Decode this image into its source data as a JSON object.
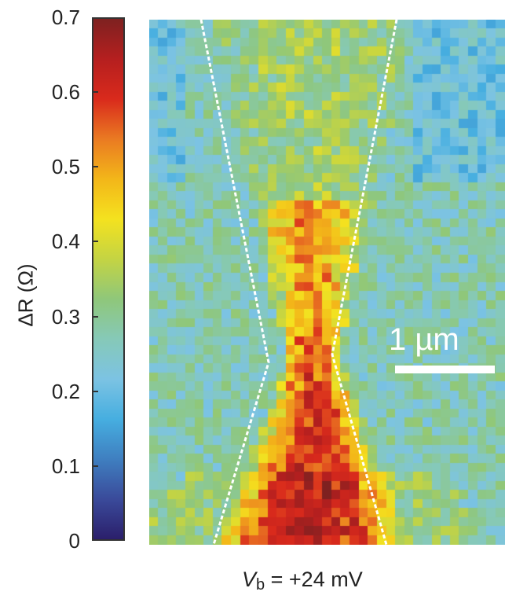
{
  "chart_data": {
    "type": "heatmap",
    "title": "",
    "caption": {
      "symbol": "V",
      "subscript": "b",
      "text": " = +24 mV"
    },
    "colorbar": {
      "label": "ΔR (Ω)",
      "min": 0,
      "max": 0.7,
      "ticks": [
        "0",
        "0.1",
        "0.2",
        "0.3",
        "0.4",
        "0.5",
        "0.6",
        "0.7"
      ],
      "colormap": "jet-like",
      "stops": [
        "#2b1f6b",
        "#3a4a9a",
        "#3f7fc0",
        "#46aee0",
        "#7cc3e3",
        "#86c9b8",
        "#8fc77a",
        "#c4d443",
        "#f4e21f",
        "#f3b619",
        "#ea7a22",
        "#d92a1c",
        "#b51f1f",
        "#7e2120"
      ]
    },
    "grid": {
      "columns": 39,
      "rows": 58,
      "background_level": 0.27,
      "channel_peak_level": 0.58
    },
    "annotations": {
      "scale_bar": "1 µm",
      "constriction_outline": "white dashed bow-tie lines meeting near y≈0.65 of map height"
    }
  }
}
